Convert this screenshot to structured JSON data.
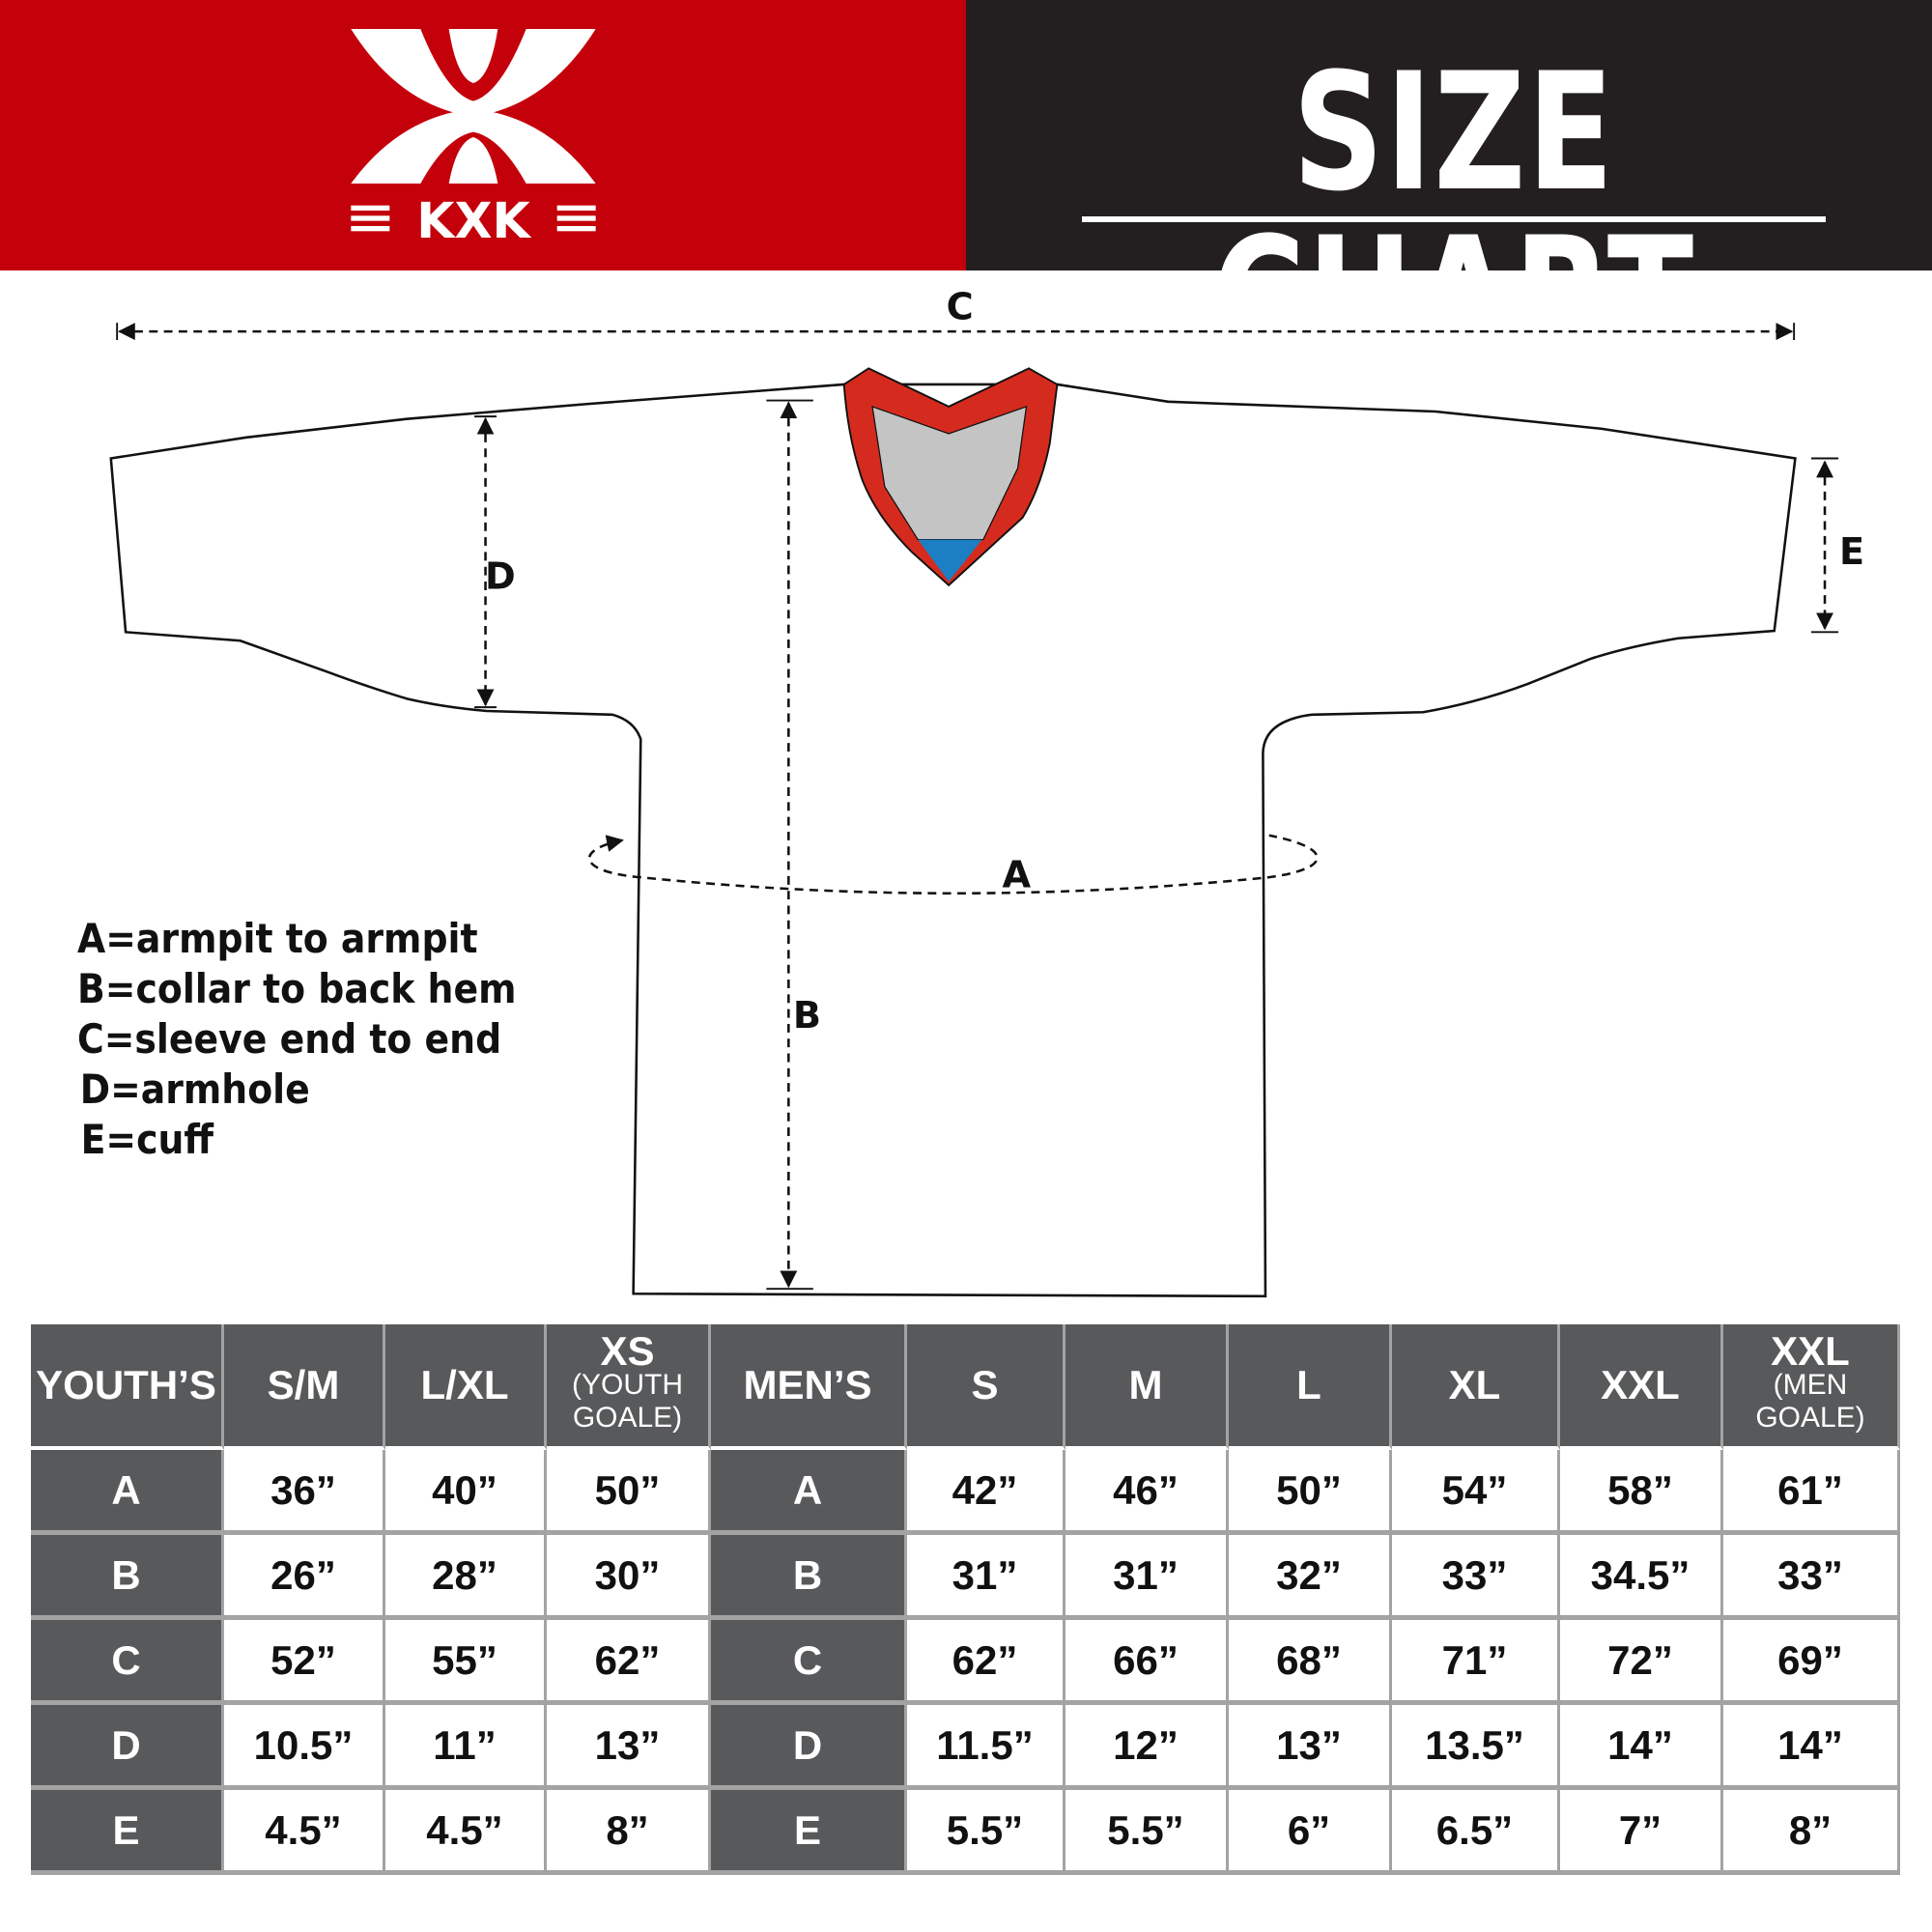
{
  "header": {
    "logo_text": "KXK",
    "title": "SIZE CHART",
    "colors": {
      "brand_red": "#c4000a",
      "dark": "#231f20"
    }
  },
  "diagram": {
    "labels": {
      "a": "A",
      "b": "B",
      "c": "C",
      "d": "D",
      "e": "E"
    },
    "collar_colors": {
      "trim": "#d52b1e",
      "inner": "#c4c4c4",
      "accent": "#1c7fc4"
    }
  },
  "legend": [
    "A=armpit to armpit",
    "B=collar to back hem",
    "C=sleeve end to end",
    "D=armhole",
    "E=cuff"
  ],
  "table": {
    "youth": {
      "label": "YOUTH’S",
      "columns": [
        {
          "size": "S/M",
          "note": ""
        },
        {
          "size": "L/XL",
          "note": ""
        },
        {
          "size": "XS",
          "note": "(YOUTH GOALE)"
        }
      ],
      "rows": [
        {
          "key": "A",
          "values": [
            "36”",
            "40”",
            "50”"
          ]
        },
        {
          "key": "B",
          "values": [
            "26”",
            "28”",
            "30”"
          ]
        },
        {
          "key": "C",
          "values": [
            "52”",
            "55”",
            "62”"
          ]
        },
        {
          "key": "D",
          "values": [
            "10.5”",
            "11”",
            "13”"
          ]
        },
        {
          "key": "E",
          "values": [
            "4.5”",
            "4.5”",
            "8”"
          ]
        }
      ]
    },
    "men": {
      "label": "MEN’S",
      "columns": [
        {
          "size": "S",
          "note": ""
        },
        {
          "size": "M",
          "note": ""
        },
        {
          "size": "L",
          "note": ""
        },
        {
          "size": "XL",
          "note": ""
        },
        {
          "size": "XXL",
          "note": ""
        },
        {
          "size": "XXL",
          "note": "(MEN GOALE)"
        }
      ],
      "rows": [
        {
          "key": "A",
          "values": [
            "42”",
            "46”",
            "50”",
            "54”",
            "58”",
            "61”"
          ]
        },
        {
          "key": "B",
          "values": [
            "31”",
            "31”",
            "32”",
            "33”",
            "34.5”",
            "33”"
          ]
        },
        {
          "key": "C",
          "values": [
            "62”",
            "66”",
            "68”",
            "71”",
            "72”",
            "69”"
          ]
        },
        {
          "key": "D",
          "values": [
            "11.5”",
            "12”",
            "13”",
            "13.5”",
            "14”",
            "14”"
          ]
        },
        {
          "key": "E",
          "values": [
            "5.5”",
            "5.5”",
            "6”",
            "6.5”",
            "7”",
            "8”"
          ]
        }
      ]
    }
  }
}
